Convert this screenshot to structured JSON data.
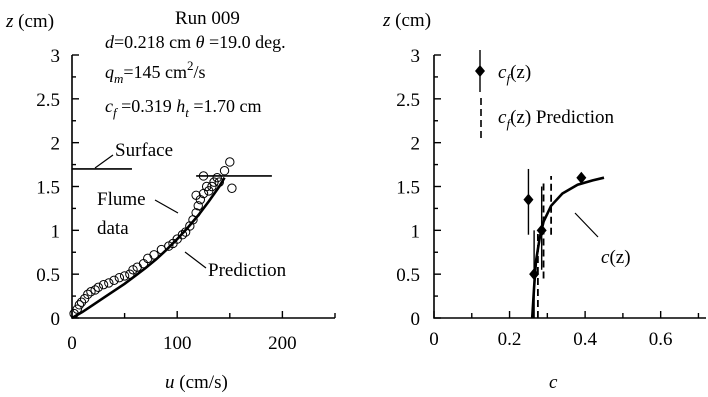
{
  "charts": {
    "left": {
      "y_axis_label": {
        "var": "z",
        "unit": " (cm)"
      },
      "x_axis_label": {
        "var": "u",
        "unit": " (cm/s)"
      },
      "x_ticks": [
        "0",
        "100",
        "200"
      ],
      "y_ticks": [
        "0",
        "0.5",
        "1",
        "1.5",
        "2",
        "2.5",
        "3"
      ],
      "run_title": "Run 009",
      "info_d": {
        "var": "d",
        "rest": "=0.218 cm"
      },
      "info_theta": {
        "var": "θ",
        "rest": " =19.0 deg."
      },
      "info_qm": {
        "var": "q",
        "sub": "m",
        "rest": "=145 cm",
        "sup": "2",
        "tail": "/s"
      },
      "info_cf": {
        "var": "c",
        "sub": "f",
        "rest": " =0.319"
      },
      "info_ht": {
        "var": "h",
        "sub": "t",
        "rest": " =1.70 cm"
      },
      "annotations": {
        "surface": "Surface",
        "flume1": "Flume",
        "flume2": "data",
        "prediction": "Prediction"
      }
    },
    "right": {
      "y_axis_label": {
        "var": "z",
        "unit": " (cm)"
      },
      "x_axis_label": "c",
      "x_ticks": [
        "0",
        "0.2",
        "0.4",
        "0.6"
      ],
      "y_ticks": [
        "0",
        "0.5",
        "1",
        "1.5",
        "2",
        "2.5",
        "3"
      ],
      "legend": {
        "measured": {
          "var": "c",
          "sub": "f",
          "rest": "(z)"
        },
        "predicted": {
          "var": "c",
          "sub": "f",
          "rest": "(z)",
          "tail": "  Prediction"
        }
      },
      "curve_label": {
        "var": "c",
        "rest": "(z)"
      }
    }
  },
  "chart_data": [
    {
      "type": "scatter",
      "title": "Run 009",
      "xlabel": "u (cm/s)",
      "ylabel": "z (cm)",
      "xlim": [
        0,
        250
      ],
      "ylim": [
        0,
        3
      ],
      "series": [
        {
          "marker": "open-circle",
          "x": [
            2,
            5,
            7,
            9,
            12,
            15,
            18,
            22,
            25,
            30,
            35,
            40,
            45,
            50,
            55,
            58,
            62,
            68,
            72,
            78,
            85,
            92,
            96,
            100,
            105,
            108,
            112,
            115,
            118,
            120,
            122,
            125,
            128,
            130,
            133,
            135,
            138,
            140,
            145,
            150,
            152,
            125,
            118
          ],
          "y": [
            0.05,
            0.1,
            0.15,
            0.18,
            0.22,
            0.27,
            0.3,
            0.32,
            0.35,
            0.38,
            0.4,
            0.43,
            0.46,
            0.48,
            0.5,
            0.55,
            0.58,
            0.62,
            0.68,
            0.72,
            0.78,
            0.82,
            0.85,
            0.9,
            0.95,
            0.98,
            1.05,
            1.12,
            1.2,
            1.28,
            1.35,
            1.42,
            1.5,
            1.45,
            1.5,
            1.55,
            1.6,
            1.55,
            1.68,
            1.78,
            1.48,
            1.62,
            1.4
          ]
        },
        {
          "name": "Prediction",
          "type": "line",
          "x": [
            0,
            10,
            20,
            30,
            40,
            50,
            60,
            70,
            80,
            90,
            100,
            110,
            120,
            130,
            140,
            145
          ],
          "y": [
            0,
            0.07,
            0.15,
            0.23,
            0.31,
            0.39,
            0.48,
            0.57,
            0.67,
            0.78,
            0.9,
            1.03,
            1.17,
            1.33,
            1.5,
            1.6
          ]
        }
      ],
      "reference_lines": [
        {
          "label": "Surface",
          "y": 1.7,
          "x": [
            0,
            57
          ]
        },
        {
          "y": 1.62,
          "x": [
            118,
            190
          ]
        }
      ]
    },
    {
      "type": "line",
      "xlabel": "c",
      "ylabel": "z (cm)",
      "xlim": [
        0,
        0.72
      ],
      "ylim": [
        0,
        3
      ],
      "series": [
        {
          "name": "cf(z)",
          "marker": "filled-diamond",
          "error_bars": "vertical",
          "points": [
            {
              "x": 0.25,
              "y": 1.35,
              "ylow": 0.95,
              "yhigh": 1.7
            },
            {
              "x": 0.265,
              "y": 0.5,
              "ylow": 0.0,
              "yhigh": 1.0
            },
            {
              "x": 0.285,
              "y": 1.0,
              "ylow": 0.55,
              "yhigh": 1.5
            },
            {
              "x": 0.39,
              "y": 1.6,
              "ylow": 1.55,
              "yhigh": 1.65
            }
          ]
        },
        {
          "name": "cf(z) Prediction",
          "style": "dashed",
          "segments": [
            {
              "x": 0.275,
              "y": [
                0.0,
                1.0
              ]
            },
            {
              "x": 0.29,
              "y": [
                0.45,
                1.55
              ]
            },
            {
              "x": 0.31,
              "y": [
                0.95,
                1.62
              ]
            }
          ]
        },
        {
          "name": "c(z)",
          "x": [
            0.26,
            0.265,
            0.27,
            0.28,
            0.29,
            0.31,
            0.34,
            0.38,
            0.42,
            0.45
          ],
          "y": [
            0.0,
            0.35,
            0.65,
            0.92,
            1.1,
            1.28,
            1.42,
            1.52,
            1.57,
            1.6
          ]
        }
      ]
    }
  ]
}
